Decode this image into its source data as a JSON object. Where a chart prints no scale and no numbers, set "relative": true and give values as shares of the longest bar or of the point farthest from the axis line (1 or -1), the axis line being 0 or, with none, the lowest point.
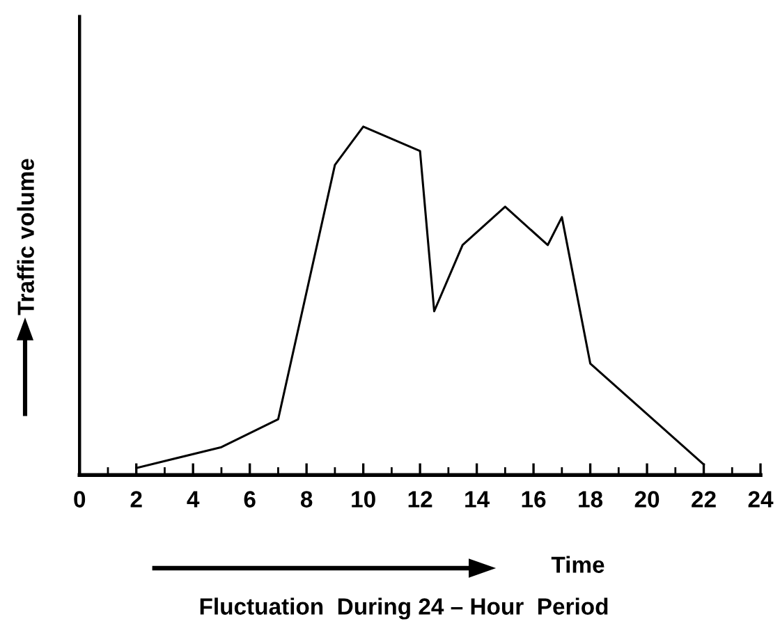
{
  "chart_data": {
    "type": "line",
    "relative": true,
    "title": "Fluctuation  During 24 – Hour  Period",
    "xlabel": "Time",
    "ylabel": "Traffic volume",
    "x": [
      2,
      5,
      7,
      9,
      10,
      12,
      12.5,
      13.5,
      15,
      16.5,
      17,
      18,
      22
    ],
    "series": [
      {
        "color": "#000000",
        "values": [
          0.02,
          0.08,
          0.16,
          0.89,
          1.0,
          0.93,
          0.47,
          0.66,
          0.77,
          0.66,
          0.74,
          0.32,
          0.03
        ]
      }
    ],
    "xlim": [
      0,
      24
    ],
    "xticks": [
      0,
      2,
      4,
      6,
      8,
      10,
      12,
      14,
      16,
      18,
      20,
      22,
      24
    ],
    "grid": false,
    "legend": false,
    "marker": "none",
    "line_style": "solid"
  }
}
